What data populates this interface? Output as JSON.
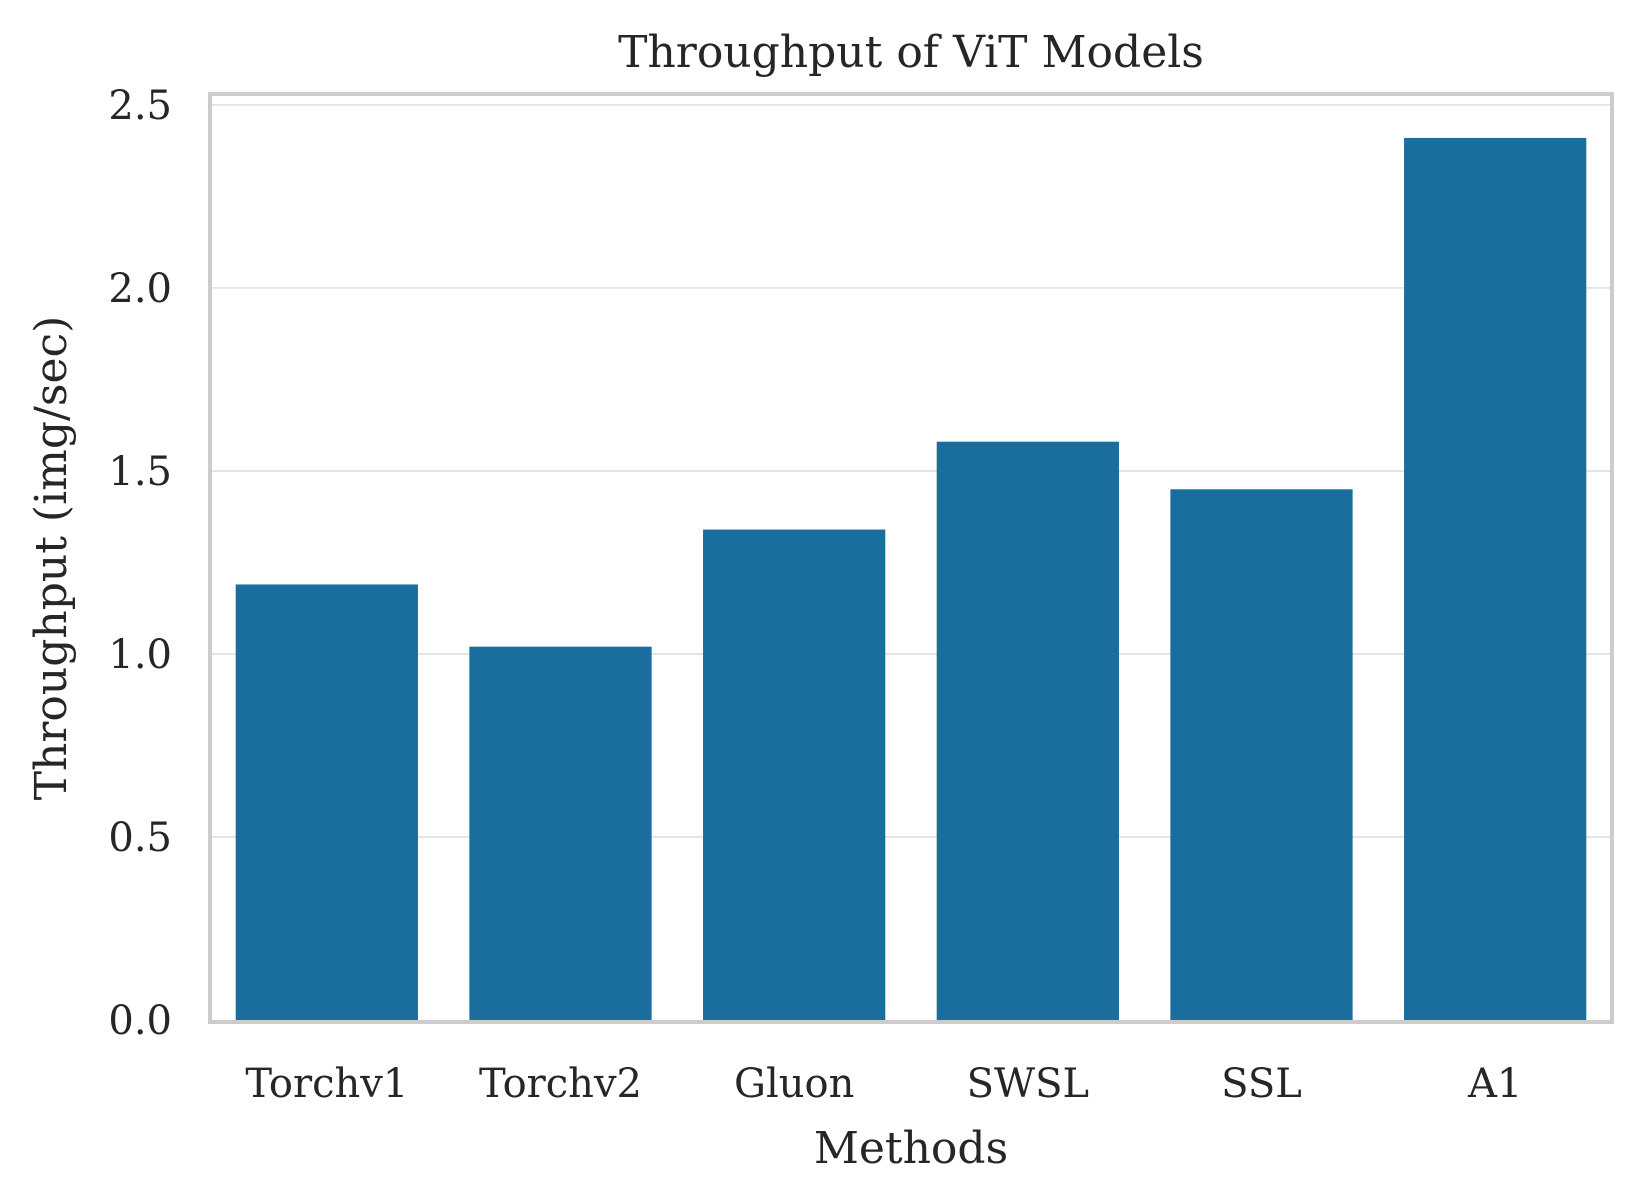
{
  "chart_data": {
    "type": "bar",
    "title": "Throughput of ViT Models",
    "xlabel": "Methods",
    "ylabel": "Throughput (img/sec)",
    "categories": [
      "Torchv1",
      "Torchv2",
      "Gluon",
      "SWSL",
      "SSL",
      "A1"
    ],
    "values": [
      1.19,
      1.02,
      1.34,
      1.58,
      1.45,
      2.41
    ],
    "ylim": [
      0,
      2.53
    ],
    "yticks": [
      "0.0",
      "0.5",
      "1.0",
      "1.5",
      "2.0",
      "2.5"
    ],
    "grid": "horizontal",
    "bar_color": "#1a6e9e"
  }
}
